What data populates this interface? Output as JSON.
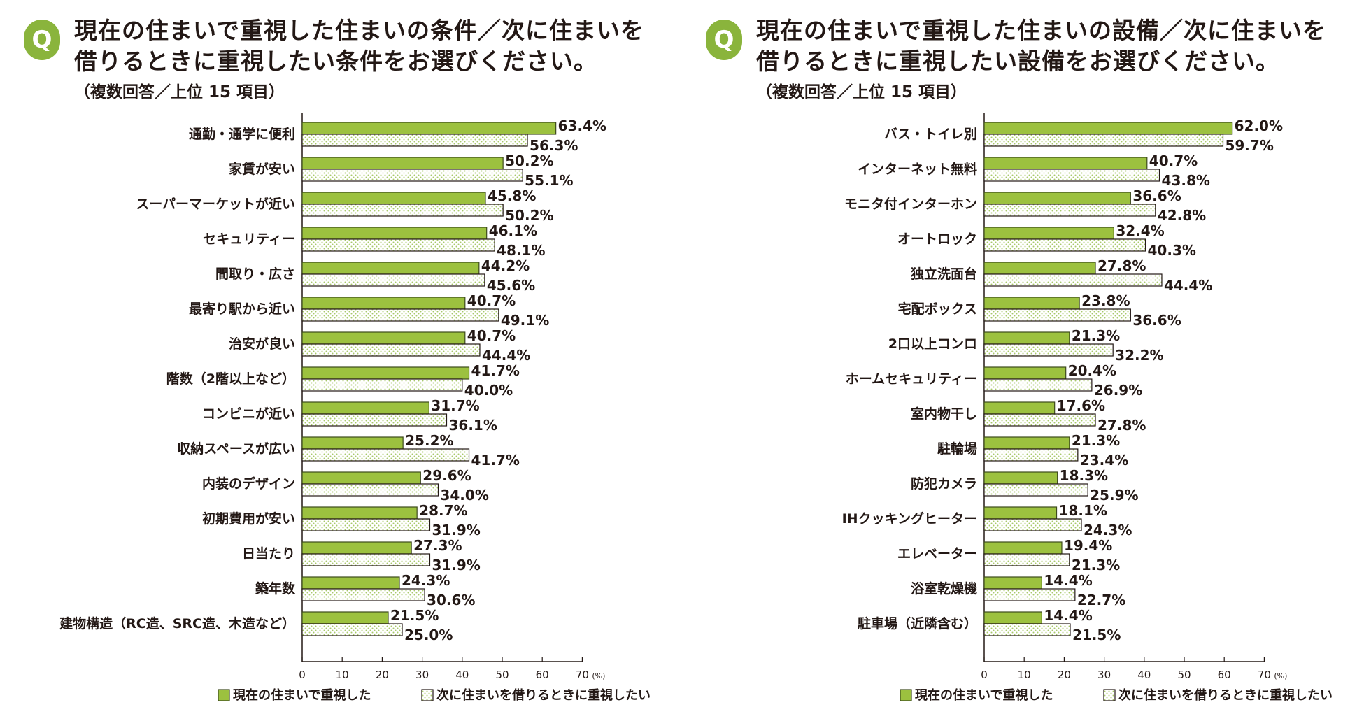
{
  "colors": {
    "current": "#9cc13f",
    "current_stroke": "#3d4a1c",
    "next_dot": "#a8c96a",
    "badge": "#8ab43c",
    "axis": "#231815"
  },
  "chart_data": [
    {
      "type": "bar",
      "orientation": "horizontal",
      "badge": "Q",
      "title_line1": "現在の住まいで重視した住まいの条件／次に住まいを",
      "title_line2": "借りるときに重視したい条件をお選びください。",
      "subtitle": "（複数回答／上位 15 項目）",
      "categories": [
        "通勤・通学に便利",
        "家賃が安い",
        "スーパーマーケットが近い",
        "セキュリティー",
        "間取り・広さ",
        "最寄り駅から近い",
        "治安が良い",
        "階数（2階以上など）",
        "コンビニが近い",
        "収納スペースが広い",
        "内装のデザイン",
        "初期費用が安い",
        "日当たり",
        "築年数",
        "建物構造（RC造、SRC造、木造など）"
      ],
      "series": [
        {
          "name": "現在の住まいで重視した",
          "values": [
            63.4,
            50.2,
            45.8,
            46.1,
            44.2,
            40.7,
            40.7,
            41.7,
            31.7,
            25.2,
            29.6,
            28.7,
            27.3,
            24.3,
            21.5
          ]
        },
        {
          "name": "次に住まいを借りるときに重視したい",
          "values": [
            56.3,
            55.1,
            50.2,
            48.1,
            45.6,
            49.1,
            44.4,
            40.0,
            36.1,
            41.7,
            34.0,
            31.9,
            31.9,
            30.6,
            25.0
          ]
        }
      ],
      "xlim": [
        0,
        70
      ],
      "xticks": [
        0,
        10,
        20,
        30,
        40,
        50,
        60,
        70
      ],
      "xunit": "(%)",
      "legend": "bottom"
    },
    {
      "type": "bar",
      "orientation": "horizontal",
      "badge": "Q",
      "title_line1": "現在の住まいで重視した住まいの設備／次に住まいを",
      "title_line2": "借りるときに重視したい設備をお選びください。",
      "subtitle": "（複数回答／上位 15 項目）",
      "categories": [
        "バス・トイレ別",
        "インターネット無料",
        "モニタ付インターホン",
        "オートロック",
        "独立洗面台",
        "宅配ボックス",
        "2口以上コンロ",
        "ホームセキュリティー",
        "室内物干し",
        "駐輪場",
        "防犯カメラ",
        "IHクッキングヒーター",
        "エレベーター",
        "浴室乾燥機",
        "駐車場（近隣含む）"
      ],
      "series": [
        {
          "name": "現在の住まいで重視した",
          "values": [
            62.0,
            40.7,
            36.6,
            32.4,
            27.8,
            23.8,
            21.3,
            20.4,
            17.6,
            21.3,
            18.3,
            18.1,
            19.4,
            14.4,
            14.4
          ]
        },
        {
          "name": "次に住まいを借りるときに重視したい",
          "values": [
            59.7,
            43.8,
            42.8,
            40.3,
            44.4,
            36.6,
            32.2,
            26.9,
            27.8,
            23.4,
            25.9,
            24.3,
            21.3,
            22.7,
            21.5
          ]
        }
      ],
      "xlim": [
        0,
        70
      ],
      "xticks": [
        0,
        10,
        20,
        30,
        40,
        50,
        60,
        70
      ],
      "xunit": "(%)",
      "legend": "bottom"
    }
  ]
}
